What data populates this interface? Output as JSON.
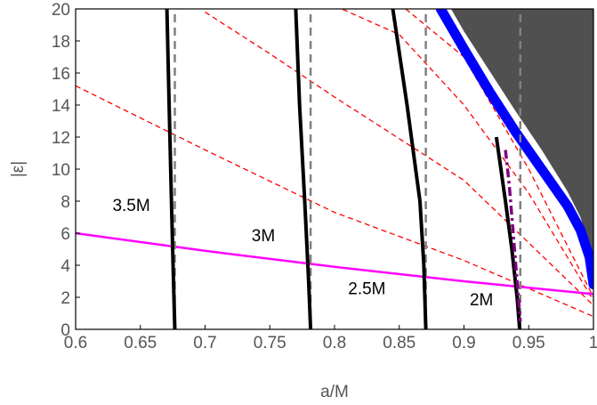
{
  "chart_data": {
    "type": "line",
    "xlabel": "a/M",
    "ylabel": "|ε|",
    "xlim": [
      0.6,
      1.0
    ],
    "ylim": [
      0,
      20
    ],
    "xticks": [
      "0.6",
      "0.65",
      "0.7",
      "0.75",
      "0.8",
      "0.85",
      "0.9",
      "0.95",
      "1"
    ],
    "yticks": [
      "0",
      "2",
      "4",
      "6",
      "8",
      "10",
      "12",
      "14",
      "16",
      "18",
      "20"
    ],
    "grid": false,
    "colors": {
      "shaded_region": "#505050",
      "blue_band": "#0000ff",
      "magenta_line": "#ff00ff",
      "red_dashed": "#ff0000",
      "gray_dashed": "#808080",
      "black_curves": "#000000",
      "purple_dashdot": "#800080"
    },
    "series": [
      {
        "name": "3.5M",
        "style": "black-solid",
        "x": [
          0.6705,
          0.6722,
          0.674,
          0.6756,
          0.6766
        ],
        "y": [
          20,
          14,
          8,
          3,
          0
        ]
      },
      {
        "name": "3M",
        "style": "black-solid",
        "x": [
          0.77,
          0.773,
          0.777,
          0.78,
          0.7815
        ],
        "y": [
          20,
          14,
          8,
          3,
          0
        ]
      },
      {
        "name": "2.5M",
        "style": "black-solid",
        "x": [
          0.845,
          0.856,
          0.866,
          0.869,
          0.8705
        ],
        "y": [
          20,
          14,
          8,
          4,
          0
        ]
      },
      {
        "name": "2M",
        "style": "black-solid",
        "x": [
          0.925,
          0.932,
          0.937,
          0.941,
          0.943
        ],
        "y": [
          12,
          8,
          5,
          2,
          0
        ]
      },
      {
        "style": "gray-dashed",
        "x": [
          0.6766,
          0.6766
        ],
        "y": [
          0,
          20
        ]
      },
      {
        "style": "gray-dashed",
        "x": [
          0.7815,
          0.7815
        ],
        "y": [
          0,
          20
        ]
      },
      {
        "style": "gray-dashed",
        "x": [
          0.8705,
          0.8705
        ],
        "y": [
          0,
          20
        ]
      },
      {
        "style": "gray-dashed",
        "x": [
          0.9435,
          0.9435
        ],
        "y": [
          0,
          20
        ]
      },
      {
        "style": "magenta-solid",
        "x": [
          0.6,
          0.7,
          0.8,
          0.9,
          1.0
        ],
        "y": [
          6.0,
          4.9,
          3.9,
          3.0,
          2.2
        ]
      },
      {
        "style": "red-dashed",
        "x": [
          0.6,
          0.7,
          0.8,
          0.9,
          1.0
        ],
        "y": [
          6.0,
          4.9,
          3.9,
          3.0,
          2.2
        ]
      },
      {
        "style": "red-dashed",
        "x": [
          0.6,
          0.7,
          0.8,
          0.9,
          1.0
        ],
        "y": [
          15.2,
          11.2,
          7.3,
          4.3,
          0.8
        ]
      },
      {
        "style": "red-dashed",
        "x": [
          0.7,
          0.75,
          0.8,
          0.9,
          1.0
        ],
        "y": [
          19.8,
          17.2,
          14.5,
          9.3,
          1.5
        ]
      },
      {
        "style": "red-dashed",
        "x": [
          0.8,
          0.85,
          0.9,
          0.95,
          1.0
        ],
        "y": [
          20.2,
          18.4,
          14.0,
          8.5,
          1.8
        ]
      },
      {
        "style": "red-dashed",
        "x": [
          0.855,
          0.9,
          0.95,
          1.0
        ],
        "y": [
          20.0,
          17.0,
          10.0,
          2.0
        ]
      },
      {
        "style": "purple-dashdot",
        "x": [
          0.932,
          0.935,
          0.938,
          0.941,
          0.9435
        ],
        "y": [
          11.2,
          9.0,
          6.0,
          3.0,
          0.5
        ]
      },
      {
        "style": "blue-band",
        "x": [
          0.882,
          0.9,
          0.92,
          0.94,
          0.96,
          0.98,
          0.99,
          0.997,
          1.0
        ],
        "y": [
          20,
          17.5,
          14.8,
          12.3,
          10.0,
          7.7,
          6.2,
          4.5,
          2.8
        ]
      },
      {
        "style": "shaded-region",
        "x": [
          0.89,
          0.9,
          0.92,
          0.94,
          0.96,
          0.98,
          0.99,
          0.997,
          1.0
        ],
        "y": [
          20,
          18.6,
          16.1,
          13.6,
          11.2,
          8.6,
          7.0,
          5.1,
          3.0
        ]
      }
    ],
    "annotations": [
      {
        "text": "3.5M",
        "x": 0.643,
        "y": 7.4
      },
      {
        "text": "3M",
        "x": 0.745,
        "y": 5.5
      },
      {
        "text": "2.5M",
        "x": 0.825,
        "y": 2.2
      },
      {
        "text": "2M",
        "x": 0.9135,
        "y": 1.5
      }
    ]
  }
}
